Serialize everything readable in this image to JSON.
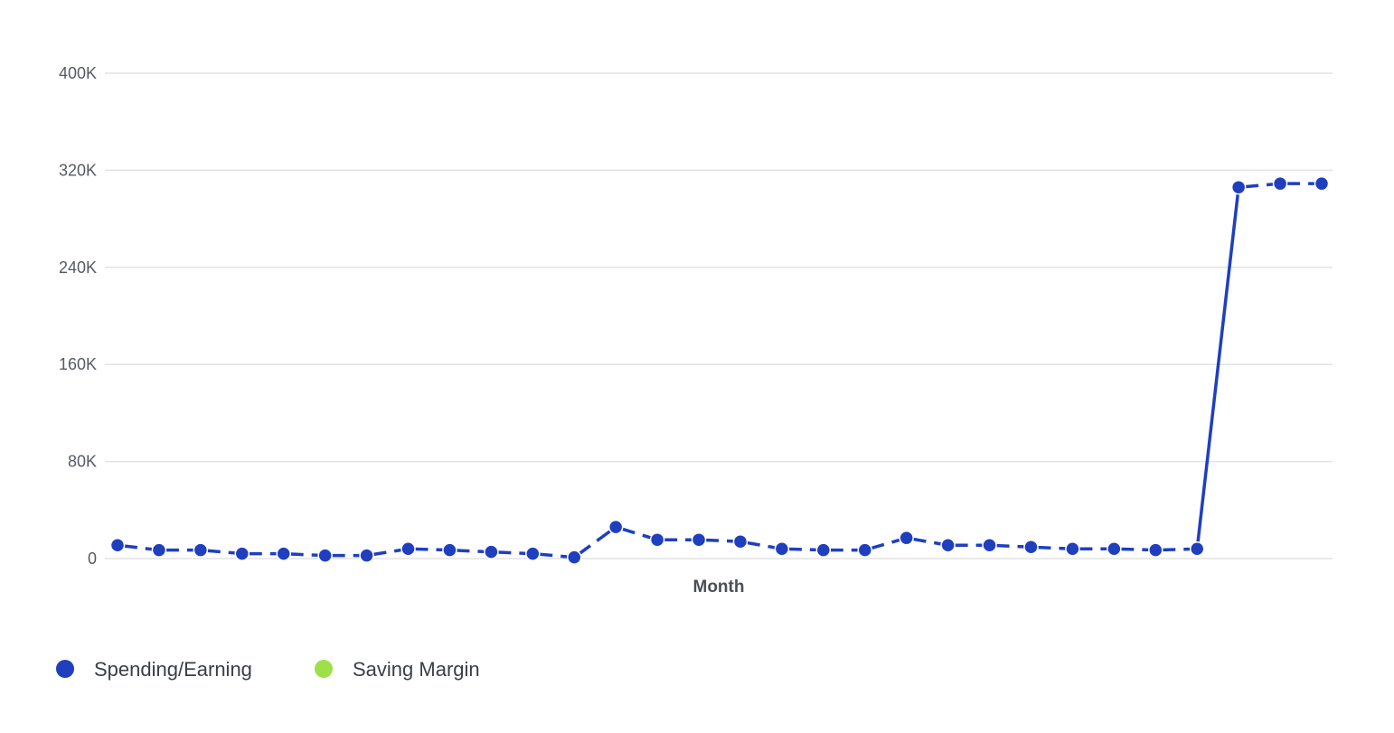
{
  "chart_data": {
    "type": "line",
    "title": "",
    "xlabel": "Month",
    "ylabel": "",
    "ylim": [
      0,
      400000
    ],
    "yticks": [
      {
        "value": 0,
        "label": "0"
      },
      {
        "value": 80000,
        "label": "80K"
      },
      {
        "value": 160000,
        "label": "160K"
      },
      {
        "value": 240000,
        "label": "240K"
      },
      {
        "value": 320000,
        "label": "320K"
      },
      {
        "value": 400000,
        "label": "400K"
      }
    ],
    "grid": true,
    "legend_position": "bottom-left",
    "series": [
      {
        "name": "Spending/Earning",
        "color": "#1f3fbf",
        "values": [
          11000,
          7000,
          7000,
          4000,
          4000,
          2500,
          2500,
          8000,
          7000,
          5500,
          4000,
          1000,
          26000,
          15500,
          15500,
          14000,
          8000,
          7000,
          7000,
          17000,
          11000,
          11000,
          9500,
          8000,
          8000,
          7000,
          8000,
          306000,
          309000,
          309000
        ]
      },
      {
        "name": "Saving Margin",
        "color": "#9ee04a",
        "values": []
      }
    ]
  }
}
